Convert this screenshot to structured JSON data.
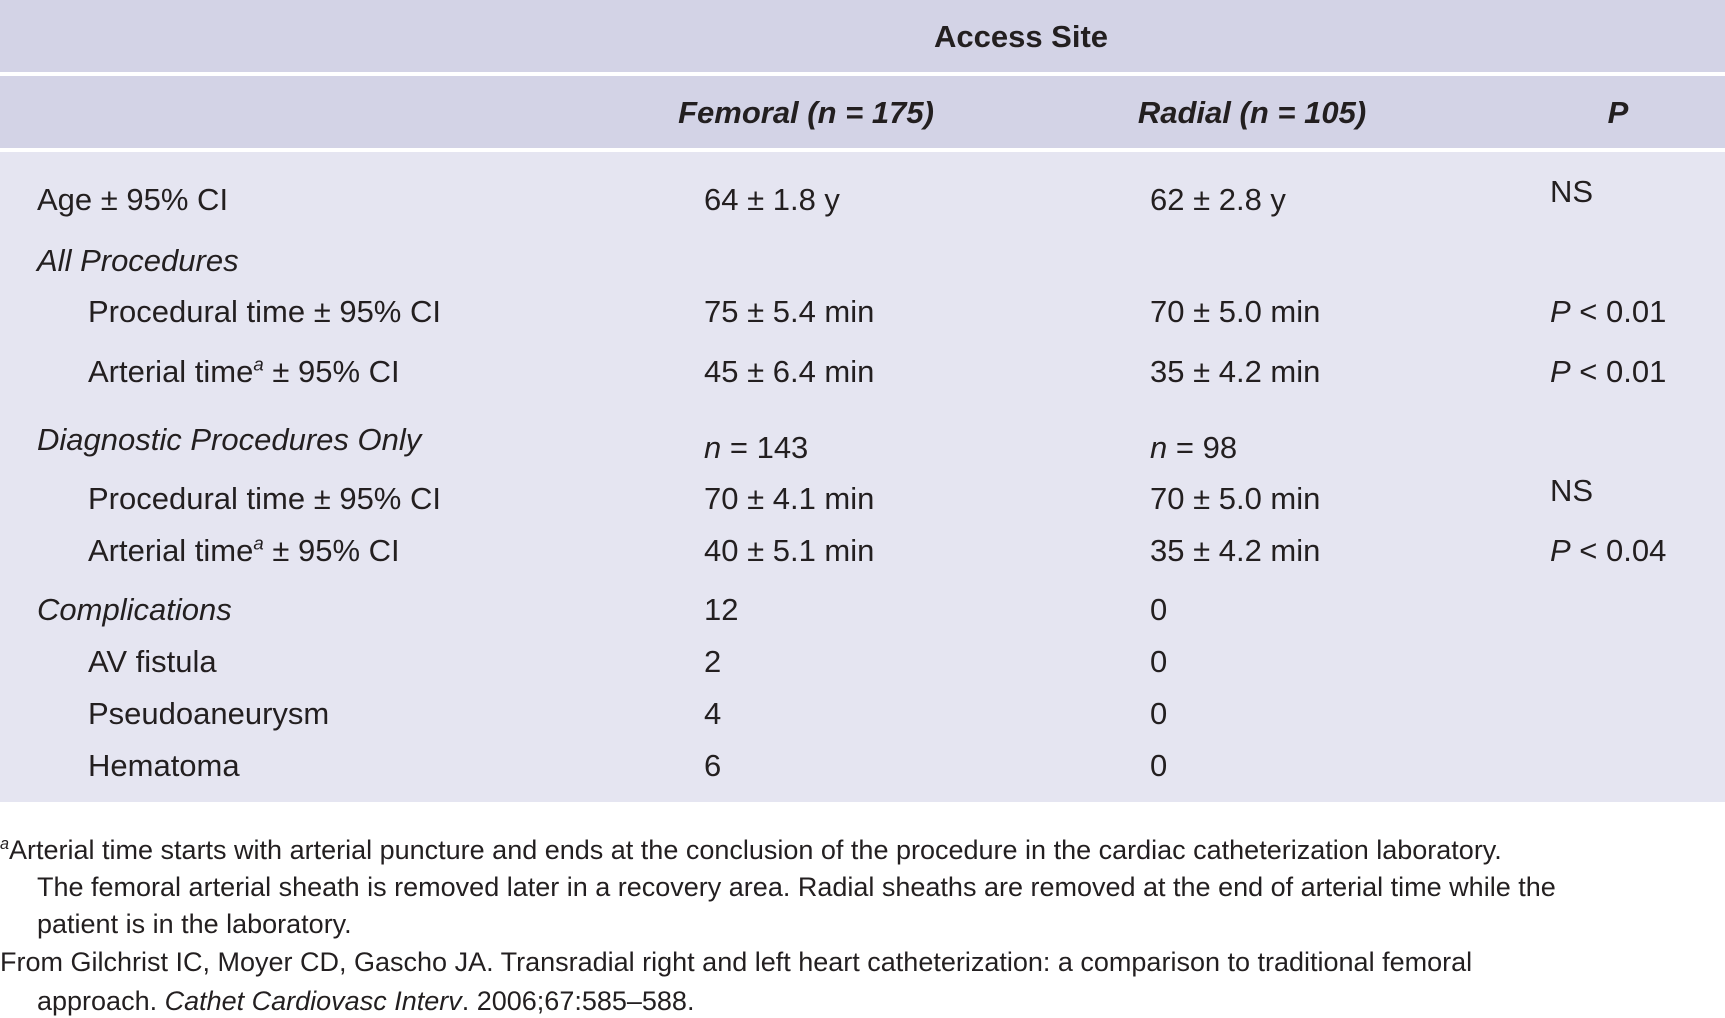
{
  "table": {
    "spanning_header": "Access Site",
    "columns": [
      "",
      "Femoral (n = 175)",
      "Radial (n = 105)",
      "P"
    ],
    "rows": [
      {
        "label": "Age ± 95% CI",
        "style": "normal",
        "femoral": "64 ± 1.8 y",
        "radial": "62 ± 2.8 y",
        "p": "NS"
      },
      {
        "label": "All Procedures",
        "style": "section",
        "femoral": "",
        "radial": "",
        "p": ""
      },
      {
        "label": "Procedural time ± 95% CI",
        "style": "indent",
        "femoral": "75 ± 5.4 min",
        "radial": "70 ± 5.0 min",
        "p": "P < 0.01"
      },
      {
        "label": "Arterial time",
        "label_sup": "a",
        "label_rest": " ± 95% CI",
        "style": "indent",
        "femoral": "45 ± 6.4 min",
        "radial": "35 ± 4.2 min",
        "p": "P < 0.01"
      },
      {
        "label": "Diagnostic Procedures Only",
        "style": "section",
        "femoral": "n = 143",
        "radial": "n = 98",
        "p": ""
      },
      {
        "label": "Procedural time ± 95% CI",
        "style": "indent",
        "femoral": "70 ± 4.1 min",
        "radial": "70 ± 5.0 min",
        "p": "NS"
      },
      {
        "label": "Arterial time",
        "label_sup": "a",
        "label_rest": " ± 95% CI",
        "style": "indent",
        "femoral": "40 ± 5.1 min",
        "radial": "35 ± 4.2 min",
        "p": "P < 0.04"
      },
      {
        "label": "Complications",
        "style": "section",
        "femoral": "12",
        "radial": "0",
        "p": ""
      },
      {
        "label": "AV fistula",
        "style": "indent",
        "femoral": "2",
        "radial": "0",
        "p": ""
      },
      {
        "label": "Pseudoaneurysm",
        "style": "indent",
        "femoral": "4",
        "radial": "0",
        "p": ""
      },
      {
        "label": "Hematoma",
        "style": "indent",
        "femoral": "6",
        "radial": "0",
        "p": ""
      }
    ]
  },
  "footnotes": {
    "a_marker": "a",
    "a_lines": [
      "Arterial time starts with arterial puncture and ends at the conclusion of the procedure in the cardiac catheterization laboratory.",
      "The femoral arterial sheath is removed later in a recovery area. Radial sheaths are removed at the end of arterial time while the",
      "patient is in the laboratory."
    ],
    "source_line1": "From Gilchrist IC, Moyer CD, Gascho JA. Transradial right and left heart catheterization: a comparison to traditional femoral",
    "source_line2_pre": "approach. ",
    "source_journal": "Cathet Cardiovasc Interv",
    "source_line2_post": ". 2006;67:585–588."
  },
  "colors": {
    "header_bg": "#d3d3e6",
    "body_bg": "#e5e5f1",
    "text": "#231f20"
  }
}
